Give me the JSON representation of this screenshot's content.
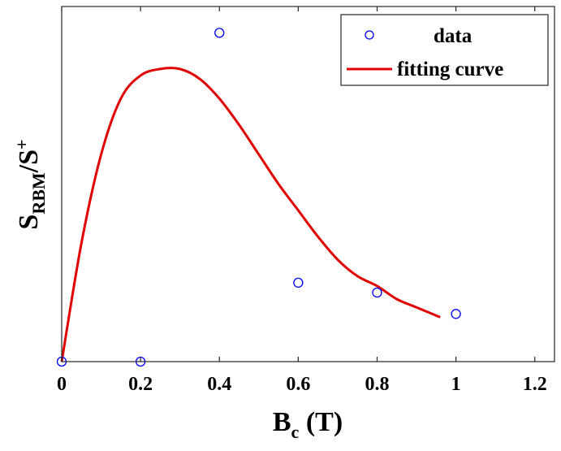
{
  "chart_data": {
    "type": "scatter",
    "xlabel_main": "B",
    "xlabel_sub": "c",
    "xlabel_unit": " (T)",
    "ylabel_main": "S",
    "ylabel_sub": "RBM",
    "ylabel_sep": "/S",
    "ylabel_sup": "+",
    "xlim": [
      0,
      1.25
    ],
    "ylim": [
      0,
      1.08
    ],
    "xticks": [
      0,
      0.2,
      0.4,
      0.6,
      0.8,
      1,
      1.2
    ],
    "xtick_labels": [
      "0",
      "0.2",
      "0.4",
      "0.6",
      "0.8",
      "1",
      "1.2"
    ],
    "y_ticks_shown": false,
    "grid": false,
    "legend_position": "top-right",
    "series": [
      {
        "name": "data",
        "kind": "markers",
        "marker": "circle",
        "color": "#0000ff",
        "x": [
          0,
          0.2,
          0.4,
          0.6,
          0.8,
          1.0
        ],
        "y": [
          0,
          0,
          1.0,
          0.24,
          0.21,
          0.145
        ]
      },
      {
        "name": "fitting curve",
        "kind": "line",
        "color": "#e00000",
        "x": [
          0,
          0.05,
          0.1,
          0.15,
          0.2,
          0.25,
          0.3,
          0.35,
          0.4,
          0.45,
          0.5,
          0.55,
          0.6,
          0.65,
          0.7,
          0.75,
          0.8,
          0.85,
          0.9,
          0.96
        ],
        "y": [
          0,
          0.36,
          0.63,
          0.8,
          0.87,
          0.89,
          0.89,
          0.86,
          0.8,
          0.72,
          0.63,
          0.54,
          0.46,
          0.38,
          0.31,
          0.26,
          0.23,
          0.19,
          0.165,
          0.135
        ]
      }
    ]
  }
}
